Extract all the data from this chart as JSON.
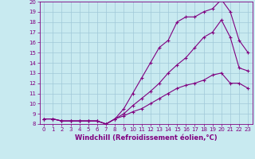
{
  "xlabel": "Windchill (Refroidissement éolien,°C)",
  "bg_color": "#c8eaf0",
  "line_color": "#800080",
  "grid_color": "#a0c8d8",
  "line1_x": [
    0,
    1,
    2,
    3,
    4,
    5,
    6,
    7,
    8,
    9,
    10,
    11,
    12,
    13,
    14,
    15,
    16,
    17,
    18,
    19,
    20,
    21,
    22,
    23
  ],
  "line1_y": [
    8.5,
    8.5,
    8.3,
    8.3,
    8.3,
    8.3,
    8.3,
    8.0,
    8.5,
    9.5,
    11.0,
    12.5,
    14.0,
    15.5,
    16.2,
    18.0,
    18.5,
    18.5,
    19.0,
    19.3,
    20.2,
    19.0,
    16.2,
    15.0
  ],
  "line2_x": [
    0,
    1,
    2,
    3,
    4,
    5,
    6,
    7,
    8,
    9,
    10,
    11,
    12,
    13,
    14,
    15,
    16,
    17,
    18,
    19,
    20,
    21,
    22,
    23
  ],
  "line2_y": [
    8.5,
    8.5,
    8.3,
    8.3,
    8.3,
    8.3,
    8.3,
    8.0,
    8.5,
    9.0,
    9.8,
    10.5,
    11.2,
    12.0,
    13.0,
    13.8,
    14.5,
    15.5,
    16.5,
    17.0,
    18.2,
    16.5,
    13.5,
    13.2
  ],
  "line3_x": [
    0,
    1,
    2,
    3,
    4,
    5,
    6,
    7,
    8,
    9,
    10,
    11,
    12,
    13,
    14,
    15,
    16,
    17,
    18,
    19,
    20,
    21,
    22,
    23
  ],
  "line3_y": [
    8.5,
    8.5,
    8.3,
    8.3,
    8.3,
    8.3,
    8.3,
    8.0,
    8.5,
    8.8,
    9.2,
    9.5,
    10.0,
    10.5,
    11.0,
    11.5,
    11.8,
    12.0,
    12.3,
    12.8,
    13.0,
    12.0,
    12.0,
    11.5
  ],
  "ylim": [
    8,
    20
  ],
  "xlim": [
    -0.5,
    23.5
  ],
  "yticks": [
    8,
    9,
    10,
    11,
    12,
    13,
    14,
    15,
    16,
    17,
    18,
    19,
    20
  ],
  "xticks": [
    0,
    1,
    2,
    3,
    4,
    5,
    6,
    7,
    8,
    9,
    10,
    11,
    12,
    13,
    14,
    15,
    16,
    17,
    18,
    19,
    20,
    21,
    22,
    23
  ],
  "tick_fontsize": 5.0,
  "xlabel_fontsize": 6.0
}
